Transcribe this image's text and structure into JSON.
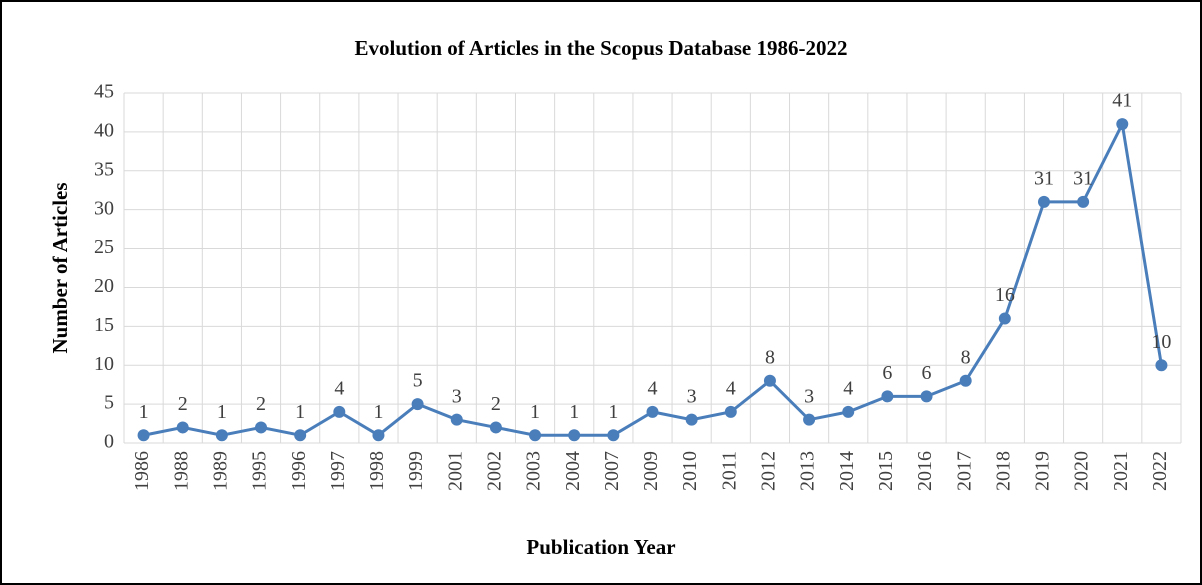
{
  "chart_data": {
    "type": "line",
    "title": "Evolution of Articles in the Scopus Database 1986-2022",
    "x_label": "Publication Year",
    "y_label": "Number of Articles",
    "categories": [
      "1986",
      "1988",
      "1989",
      "1995",
      "1996",
      "1997",
      "1998",
      "1999",
      "2001",
      "2002",
      "2003",
      "2004",
      "2007",
      "2009",
      "2010",
      "2011",
      "2012",
      "2013",
      "2014",
      "2015",
      "2016",
      "2017",
      "2018",
      "2019",
      "2020",
      "2021",
      "2022"
    ],
    "series": [
      {
        "name": "Articles",
        "color": "#4a7ebb",
        "values": [
          1,
          2,
          1,
          2,
          1,
          4,
          1,
          5,
          3,
          2,
          1,
          1,
          1,
          4,
          3,
          4,
          8,
          3,
          4,
          6,
          6,
          8,
          16,
          31,
          31,
          41,
          10
        ]
      }
    ],
    "ylim": [
      0,
      45
    ],
    "yticks": [
      0,
      5,
      10,
      15,
      20,
      25,
      30,
      35,
      40,
      45
    ],
    "grid": true
  }
}
